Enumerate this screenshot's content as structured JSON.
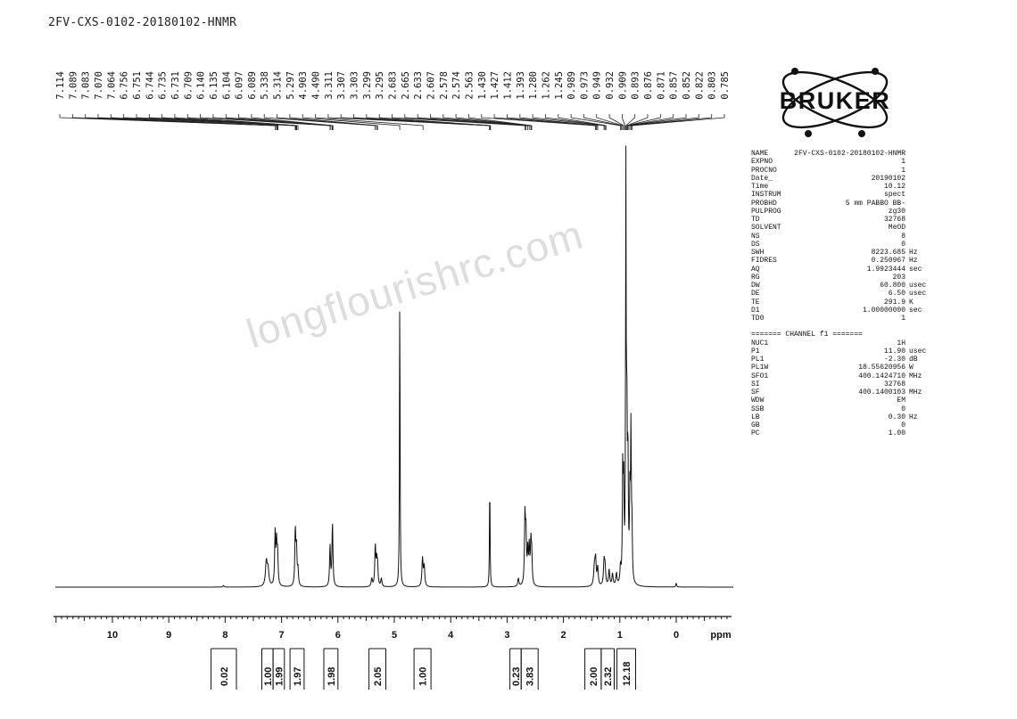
{
  "header": {
    "title": "2FV-CXS-0102-20180102-HNMR"
  },
  "logo": {
    "text": "BRUKER",
    "color": "#111111"
  },
  "watermark": {
    "text": "longflourishrc.com"
  },
  "parameters": {
    "block1": [
      {
        "key": "NAME",
        "value": "2FV-CXS-0102-20180102-HNMR",
        "unit": ""
      },
      {
        "key": "EXPNO",
        "value": "1",
        "unit": ""
      },
      {
        "key": "PROCNO",
        "value": "1",
        "unit": ""
      },
      {
        "key": "Date_",
        "value": "20190102",
        "unit": ""
      },
      {
        "key": "Time",
        "value": "10.12",
        "unit": ""
      },
      {
        "key": "INSTRUM",
        "value": "spect",
        "unit": ""
      },
      {
        "key": "PROBHD",
        "value": "5 mm PABBO BB-",
        "unit": ""
      },
      {
        "key": "PULPROG",
        "value": "zg30",
        "unit": ""
      },
      {
        "key": "TD",
        "value": "32768",
        "unit": ""
      },
      {
        "key": "SOLVENT",
        "value": "MeOD",
        "unit": ""
      },
      {
        "key": "NS",
        "value": "8",
        "unit": ""
      },
      {
        "key": "DS",
        "value": "0",
        "unit": ""
      },
      {
        "key": "SWH",
        "value": "8223.685",
        "unit": "Hz"
      },
      {
        "key": "FIDRES",
        "value": "0.250967",
        "unit": "Hz"
      },
      {
        "key": "AQ",
        "value": "1.9923444",
        "unit": "sec"
      },
      {
        "key": "RG",
        "value": "203",
        "unit": ""
      },
      {
        "key": "DW",
        "value": "60.800",
        "unit": "usec"
      },
      {
        "key": "DE",
        "value": "6.50",
        "unit": "usec"
      },
      {
        "key": "TE",
        "value": "291.9",
        "unit": "K"
      },
      {
        "key": "D1",
        "value": "1.00000000",
        "unit": "sec"
      },
      {
        "key": "TD0",
        "value": "1",
        "unit": ""
      }
    ],
    "channel_header": "======= CHANNEL f1 =======",
    "block2": [
      {
        "key": "NUC1",
        "value": "1H",
        "unit": ""
      },
      {
        "key": "P1",
        "value": "11.90",
        "unit": "usec"
      },
      {
        "key": "PL1",
        "value": "-2.30",
        "unit": "dB"
      },
      {
        "key": "PL1W",
        "value": "18.55620956",
        "unit": "W"
      },
      {
        "key": "SFO1",
        "value": "400.1424710",
        "unit": "MHz"
      },
      {
        "key": "SI",
        "value": "32768",
        "unit": ""
      },
      {
        "key": "SF",
        "value": "400.1400103",
        "unit": "MHz"
      },
      {
        "key": "WDW",
        "value": "EM",
        "unit": ""
      },
      {
        "key": "SSB",
        "value": "0",
        "unit": ""
      },
      {
        "key": "LB",
        "value": "0.30",
        "unit": "Hz"
      },
      {
        "key": "GB",
        "value": "0",
        "unit": ""
      },
      {
        "key": "PC",
        "value": "1.00",
        "unit": ""
      }
    ]
  },
  "chart_data": {
    "type": "line",
    "title": "",
    "xlabel": "ppm",
    "ylabel": "",
    "x_axis_reversed": true,
    "xlim": [
      11.0,
      -1.0
    ],
    "x_ticks": [
      10,
      9,
      8,
      7,
      6,
      5,
      4,
      3,
      2,
      1,
      0
    ],
    "peak_labels": [
      "7.114",
      "7.089",
      "7.083",
      "7.070",
      "7.064",
      "6.756",
      "6.751",
      "6.744",
      "6.735",
      "6.731",
      "6.709",
      "6.140",
      "6.135",
      "6.104",
      "6.097",
      "6.089",
      "5.338",
      "5.314",
      "5.297",
      "4.903",
      "4.490",
      "3.311",
      "3.307",
      "3.303",
      "3.299",
      "3.295",
      "2.683",
      "2.665",
      "2.633",
      "2.607",
      "2.578",
      "2.574",
      "2.563",
      "1.430",
      "1.427",
      "1.412",
      "1.393",
      "1.280",
      "1.262",
      "1.245",
      "0.989",
      "0.973",
      "0.949",
      "0.932",
      "0.909",
      "0.893",
      "0.876",
      "0.871",
      "0.857",
      "0.852",
      "0.822",
      "0.803",
      "0.785"
    ],
    "peaks": [
      {
        "ppm": 8.03,
        "height": 0.004,
        "width": 0.01
      },
      {
        "ppm": 7.27,
        "height": 0.06,
        "width": 0.018
      },
      {
        "ppm": 7.24,
        "height": 0.04,
        "width": 0.018
      },
      {
        "ppm": 7.114,
        "height": 0.13,
        "width": 0.01
      },
      {
        "ppm": 7.089,
        "height": 0.1,
        "width": 0.01
      },
      {
        "ppm": 7.07,
        "height": 0.08,
        "width": 0.01
      },
      {
        "ppm": 6.756,
        "height": 0.14,
        "width": 0.01
      },
      {
        "ppm": 6.735,
        "height": 0.09,
        "width": 0.01
      },
      {
        "ppm": 6.709,
        "height": 0.04,
        "width": 0.01
      },
      {
        "ppm": 6.14,
        "height": 0.1,
        "width": 0.01
      },
      {
        "ppm": 6.097,
        "height": 0.16,
        "width": 0.01
      },
      {
        "ppm": 5.338,
        "height": 0.1,
        "width": 0.01
      },
      {
        "ppm": 5.314,
        "height": 0.06,
        "width": 0.01
      },
      {
        "ppm": 5.297,
        "height": 0.05,
        "width": 0.01
      },
      {
        "ppm": 5.4,
        "height": 0.02,
        "width": 0.012
      },
      {
        "ppm": 5.23,
        "height": 0.02,
        "width": 0.012
      },
      {
        "ppm": 4.903,
        "height": 0.77,
        "width": 0.006
      },
      {
        "ppm": 4.5,
        "height": 0.07,
        "width": 0.012
      },
      {
        "ppm": 4.47,
        "height": 0.05,
        "width": 0.012
      },
      {
        "ppm": 3.307,
        "height": 0.27,
        "width": 0.006
      },
      {
        "ppm": 2.8,
        "height": 0.02,
        "width": 0.012
      },
      {
        "ppm": 2.683,
        "height": 0.17,
        "width": 0.01
      },
      {
        "ppm": 2.665,
        "height": 0.12,
        "width": 0.01
      },
      {
        "ppm": 2.633,
        "height": 0.08,
        "width": 0.01
      },
      {
        "ppm": 2.607,
        "height": 0.09,
        "width": 0.01
      },
      {
        "ppm": 2.578,
        "height": 0.1,
        "width": 0.01
      },
      {
        "ppm": 2.563,
        "height": 0.07,
        "width": 0.01
      },
      {
        "ppm": 1.45,
        "height": 0.05,
        "width": 0.015
      },
      {
        "ppm": 1.43,
        "height": 0.06,
        "width": 0.012
      },
      {
        "ppm": 1.393,
        "height": 0.045,
        "width": 0.012
      },
      {
        "ppm": 1.28,
        "height": 0.06,
        "width": 0.012
      },
      {
        "ppm": 1.262,
        "height": 0.045,
        "width": 0.012
      },
      {
        "ppm": 1.19,
        "height": 0.04,
        "width": 0.012
      },
      {
        "ppm": 1.13,
        "height": 0.03,
        "width": 0.012
      },
      {
        "ppm": 1.06,
        "height": 0.03,
        "width": 0.012
      },
      {
        "ppm": 0.989,
        "height": 0.04,
        "width": 0.01
      },
      {
        "ppm": 0.949,
        "height": 0.27,
        "width": 0.008
      },
      {
        "ppm": 0.932,
        "height": 0.24,
        "width": 0.008
      },
      {
        "ppm": 0.893,
        "height": 1.0,
        "width": 0.006
      },
      {
        "ppm": 0.876,
        "height": 0.4,
        "width": 0.008
      },
      {
        "ppm": 0.857,
        "height": 0.3,
        "width": 0.008
      },
      {
        "ppm": 0.822,
        "height": 0.2,
        "width": 0.008
      },
      {
        "ppm": 0.803,
        "height": 0.37,
        "width": 0.008
      },
      {
        "ppm": 0.785,
        "height": 0.12,
        "width": 0.008
      },
      {
        "ppm": 0.0,
        "height": 0.01,
        "width": 0.008
      }
    ],
    "integrals": [
      {
        "value": "0.02",
        "from": 8.25,
        "to": 7.8
      },
      {
        "value": "1.00",
        "from": 7.35,
        "to": 7.15
      },
      {
        "value": "1.99",
        "from": 7.15,
        "to": 6.95
      },
      {
        "value": "1.97",
        "from": 6.85,
        "to": 6.6
      },
      {
        "value": "1.98",
        "from": 6.25,
        "to": 6.0
      },
      {
        "value": "2.05",
        "from": 5.45,
        "to": 5.15
      },
      {
        "value": "1.00",
        "from": 4.65,
        "to": 4.35
      },
      {
        "value": "0.23",
        "from": 2.95,
        "to": 2.75
      },
      {
        "value": "3.83",
        "from": 2.75,
        "to": 2.45
      },
      {
        "value": "2.00",
        "from": 1.62,
        "to": 1.33
      },
      {
        "value": "2.32",
        "from": 1.33,
        "to": 1.1
      },
      {
        "value": "12.18",
        "from": 1.05,
        "to": 0.72
      }
    ]
  }
}
